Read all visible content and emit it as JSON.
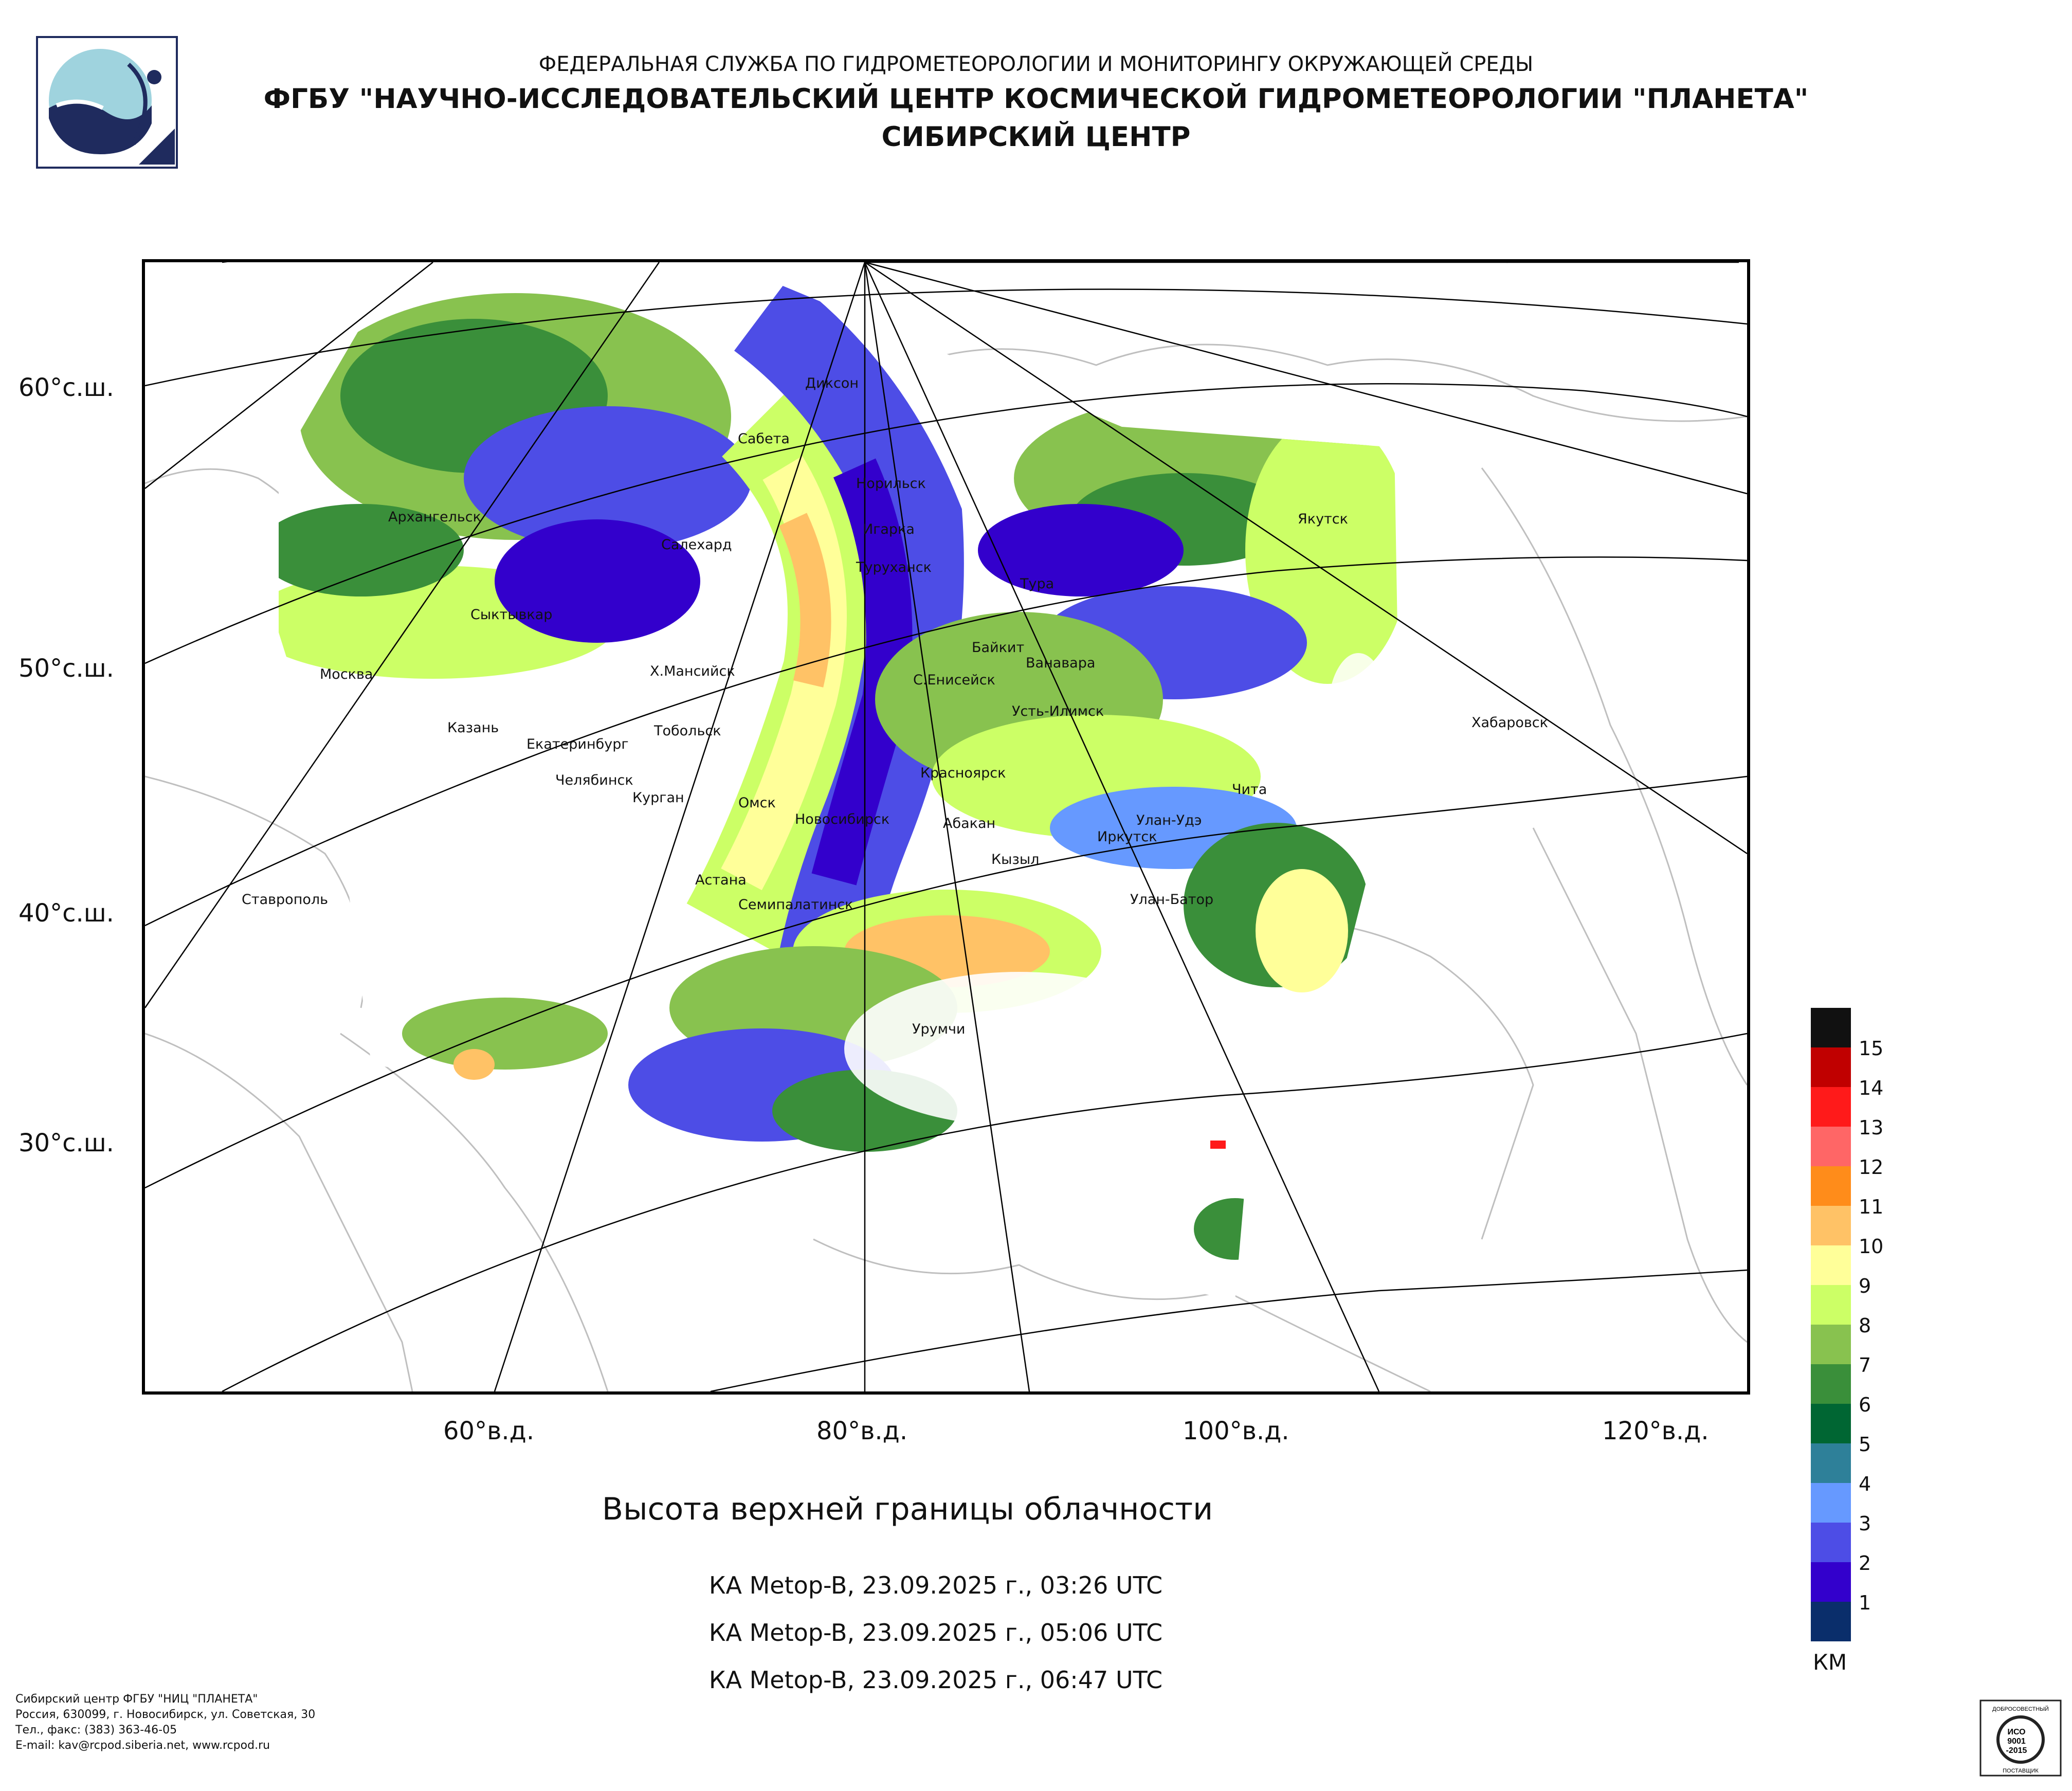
{
  "header": {
    "line1": "ФЕДЕРАЛЬНАЯ СЛУЖБА ПО ГИДРОМЕТЕОРОЛОГИИ И МОНИТОРИНГУ ОКРУЖАЮЩЕЙ СРЕДЫ",
    "line2": "ФГБУ \"НАУЧНО-ИССЛЕДОВАТЕЛЬСКИЙ ЦЕНТР КОСМИЧЕСКОЙ ГИДРОМЕТЕОРОЛОГИИ \"ПЛАНЕТА\"",
    "line3": "СИБИРСКИЙ ЦЕНТР"
  },
  "map": {
    "lat_labels": [
      "60°с.ш.",
      "50°с.ш.",
      "40°с.ш.",
      "30°с.ш."
    ],
    "lon_labels": [
      "60°в.д.",
      "80°в.д.",
      "100°в.д.",
      "120°в.д."
    ],
    "cities": [
      "Диксон",
      "Сабета",
      "Норильск",
      "Игарка",
      "Архангельск",
      "Салехард",
      "Туруханск",
      "Якутск",
      "Тура",
      "Сыктывкар",
      "Байкит",
      "Ванавара",
      "Москва",
      "Х.Мансийск",
      "С.Енисейск",
      "Усть-Илимск",
      "Казань",
      "Тобольск",
      "Хабаровск",
      "Екатеринбург",
      "Челябинск",
      "Красноярск",
      "Курган",
      "Чита",
      "Омск",
      "Новосибирск",
      "Абакан",
      "Улан-Удэ",
      "Иркутск",
      "Кызыл",
      "Астана",
      "Ставрополь",
      "Улан-Батор",
      "Семипалатинск",
      "Урумчи"
    ]
  },
  "product": {
    "title": "Высота верхней границы облачности",
    "passes": [
      "КА Metop-B, 23.09.2025 г., 03:26 UTC",
      "КА Metop-B, 23.09.2025 г., 05:06 UTC",
      "КА Metop-B, 23.09.2025 г., 06:47 UTC"
    ]
  },
  "legend": {
    "unit": "КМ",
    "values": [
      "15",
      "14",
      "13",
      "12",
      "11",
      "10",
      "9",
      "8",
      "7",
      "6",
      "5",
      "4",
      "3",
      "2",
      "1"
    ],
    "colors": [
      "#111111",
      "#c00000",
      "#ff1a1a",
      "#ff6666",
      "#ff8c1a",
      "#ffc266",
      "#ffff99",
      "#ccff66",
      "#88c24f",
      "#3a8f3a",
      "#006633",
      "#2e8099",
      "#6699ff",
      "#4d4de6",
      "#3300cc",
      "#0a2e6b"
    ]
  },
  "footer": {
    "lines": [
      "Сибирский центр ФГБУ \"НИЦ \"ПЛАНЕТА\"",
      "Россия, 630099, г. Новосибирск, ул. Советская, 30",
      "Тел., факс: (383) 363-46-05",
      "E-mail: kav@rcpod.siberia.net, www.rcpod.ru"
    ]
  },
  "iso_badge": {
    "top": "ДОБРОСОВЕСТНЫЙ",
    "line1": "ИСО",
    "line2": "9001",
    "line3": "-2015",
    "bottom": "ПОСТАВЩИК"
  }
}
